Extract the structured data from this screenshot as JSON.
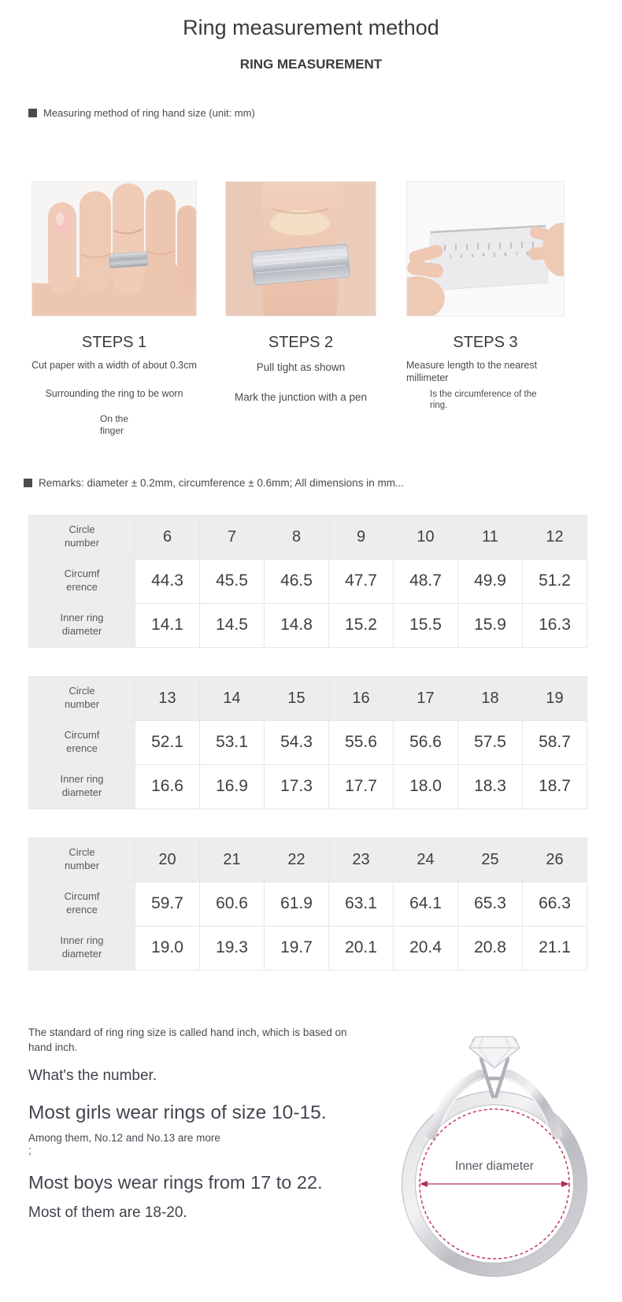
{
  "header": {
    "title": "Ring measurement method",
    "subtitle": "RING MEASUREMENT",
    "section_label": "Measuring method of ring hand size (unit: mm)"
  },
  "steps": [
    {
      "title": "STEPS 1",
      "image": "hand-with-paper-strip-photo",
      "lines": [
        "Cut paper with a width of about 0.3cm",
        "Surrounding the ring to be worn",
        "On the\nfinger"
      ]
    },
    {
      "title": "STEPS 2",
      "image": "paper-strip-closeup-photo",
      "lines": [
        "Pull tight as shown",
        "Mark the junction with a pen"
      ]
    },
    {
      "title": "STEPS 3",
      "image": "measuring-with-ruler-photo",
      "lines": [
        "Measure length to the nearest millimeter",
        "Is the circumference of the ring."
      ]
    }
  ],
  "remarks": "Remarks: diameter ± 0.2mm, circumference ± 0.6mm; All dimensions in mm...",
  "size_tables": [
    {
      "rows": [
        {
          "header": "Circle\nnumber",
          "values": [
            "6",
            "7",
            "8",
            "9",
            "10",
            "11",
            "12"
          ]
        },
        {
          "header": "Circumf\nerence",
          "values": [
            "44.3",
            "45.5",
            "46.5",
            "47.7",
            "48.7",
            "49.9",
            "51.2"
          ]
        },
        {
          "header": "Inner ring\ndiameter",
          "values": [
            "14.1",
            "14.5",
            "14.8",
            "15.2",
            "15.5",
            "15.9",
            "16.3"
          ]
        }
      ]
    },
    {
      "rows": [
        {
          "header": "Circle\nnumber",
          "values": [
            "13",
            "14",
            "15",
            "16",
            "17",
            "18",
            "19"
          ]
        },
        {
          "header": "Circumf\nerence",
          "values": [
            "52.1",
            "53.1",
            "54.3",
            "55.6",
            "56.6",
            "57.5",
            "58.7"
          ]
        },
        {
          "header": "Inner ring\ndiameter",
          "values": [
            "16.6",
            "16.9",
            "17.3",
            "17.7",
            "18.0",
            "18.3",
            "18.7"
          ]
        }
      ]
    },
    {
      "rows": [
        {
          "header": "Circle\nnumber",
          "values": [
            "20",
            "21",
            "22",
            "23",
            "24",
            "25",
            "26"
          ]
        },
        {
          "header": "Circumf\nerence",
          "values": [
            "59.7",
            "60.6",
            "61.9",
            "63.1",
            "64.1",
            "65.3",
            "66.3"
          ]
        },
        {
          "header": "Inner ring\ndiameter",
          "values": [
            "19.0",
            "19.3",
            "19.7",
            "20.1",
            "20.4",
            "20.8",
            "21.1"
          ]
        }
      ]
    }
  ],
  "notes": {
    "standard": "The standard of ring ring size is called hand inch, which is based on hand inch.",
    "question": "What's the number.",
    "girls": "Most girls wear rings of size 10-15.",
    "girls_detail": "Among them, No.12 and No.13 are more",
    "semicolon": ";",
    "boys": "Most boys wear rings from 17 to 22.",
    "boys_detail": "Most of them are 18-20."
  },
  "ring_diagram": {
    "label": "Inner diameter"
  },
  "colors": {
    "accent_dashed_circle": "#c23a62",
    "arrow": "#ad3156",
    "table_header_bg": "#ededed",
    "table_border": "#e7e7e7",
    "text_dark": "#3b3b3b",
    "text_body": "#4c4751",
    "silver": "#b9bcc2"
  }
}
